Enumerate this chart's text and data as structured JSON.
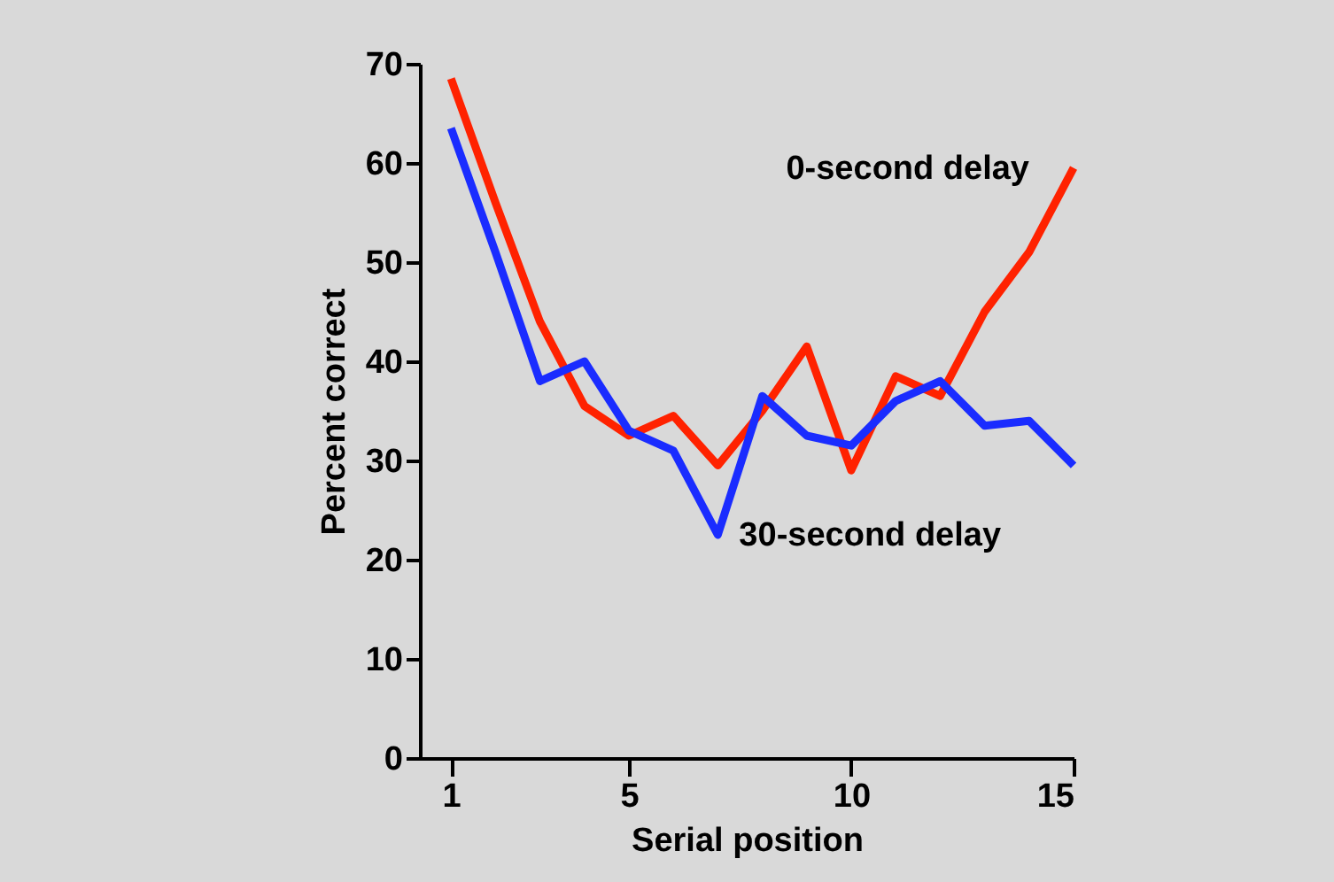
{
  "chart_data": {
    "type": "line",
    "xlabel": "Serial position",
    "ylabel": "Percent correct",
    "x": [
      1,
      2,
      3,
      4,
      5,
      6,
      7,
      8,
      9,
      10,
      11,
      12,
      13,
      14,
      15
    ],
    "series": [
      {
        "name": "0-second delay",
        "color": "#ff2200",
        "values": [
          68.5,
          56,
          44,
          35.5,
          32.5,
          34.5,
          29.5,
          35,
          41.5,
          29,
          38.5,
          36.5,
          45,
          51,
          59.5
        ]
      },
      {
        "name": "30-second delay",
        "color": "#1a2cff",
        "values": [
          63.5,
          51,
          38,
          40,
          33,
          31,
          22.5,
          36.5,
          32.5,
          31.5,
          36,
          38,
          33.5,
          34,
          29.5
        ]
      }
    ],
    "xlim": [
      0.3,
      15
    ],
    "xticks": [
      1,
      5,
      10,
      15
    ],
    "ylim": [
      0,
      70
    ],
    "yticks": [
      0,
      10,
      20,
      30,
      40,
      50,
      60,
      70
    ],
    "legend": false,
    "marker": "none",
    "line_style": "solid"
  }
}
